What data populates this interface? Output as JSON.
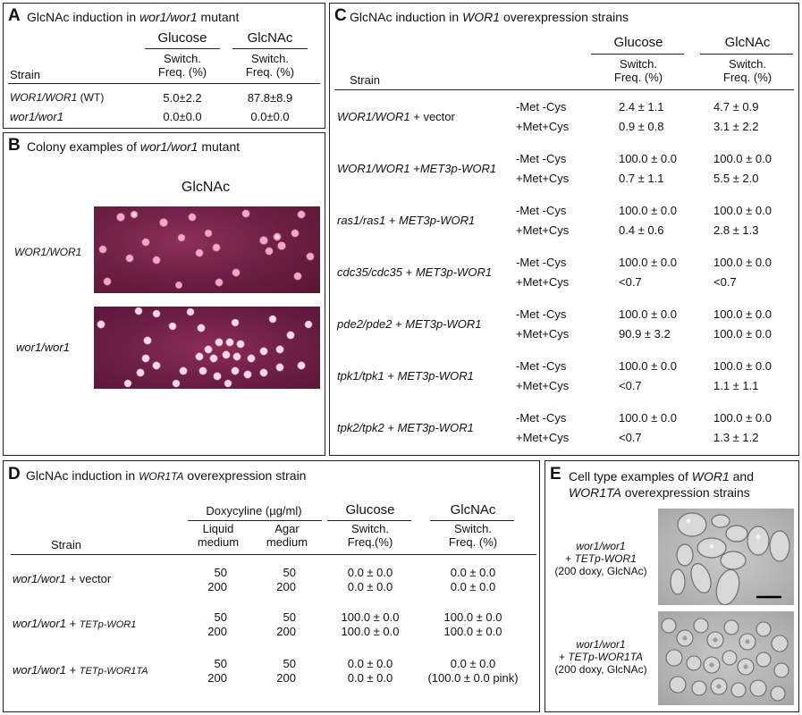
{
  "panelA": {
    "letter": "A",
    "title_pre": "GlcNAc induction in ",
    "title_em": "wor1/wor1",
    "title_post": " mutant",
    "col_glucose": "Glucose",
    "col_glcnac": "GlcNAc",
    "switch_freq_line1": "Switch.",
    "switch_freq_line2": "Freq. (%)",
    "strain_header": "Strain",
    "rows": [
      {
        "strain_em": "WOR1/WOR1",
        "strain_post": " (WT)",
        "glucose": "5.0±2.2",
        "glcnac": "87.8±8.9"
      },
      {
        "strain_em": "wor1/wor1",
        "strain_post": "",
        "glucose": "0.0±0.0",
        "glcnac": "0.0±0.0"
      }
    ]
  },
  "panelB": {
    "letter": "B",
    "title_pre": "Colony examples of ",
    "title_em": "wor1/wor1",
    "title_post": " mutant",
    "condition": "GlcNAc",
    "rows": [
      {
        "label": "WOR1/WOR1"
      },
      {
        "label": "wor1/wor1"
      }
    ]
  },
  "panelC": {
    "letter": "C",
    "title_pre": "GlcNAc induction in ",
    "title_em": "WOR1",
    "title_post": " overexpression strains",
    "col_glucose": "Glucose",
    "col_glcnac": "GlcNAc",
    "switch_freq_line1": "Switch.",
    "switch_freq_line2": "Freq. (%)",
    "strain_header": "Strain",
    "rows": [
      {
        "strain_em": "WOR1/WOR1",
        "strain_post": " + vector",
        "cond1": "-Met -Cys",
        "g1": "2.4 ± 1.1",
        "n1": "4.7 ± 0.9",
        "cond2": "+Met+Cys",
        "g2": "0.9 ± 0.8",
        "n2": "3.1 ± 2.2"
      },
      {
        "strain_em": "WOR1/WOR1",
        "strain_post": " +",
        "strain_em2": "MET3p-WOR1",
        "cond1": "-Met -Cys",
        "g1": "100.0 ± 0.0",
        "n1": "100.0 ± 0.0",
        "cond2": "+Met+Cys",
        "g2": "0.7 ± 1.1",
        "n2": "5.5 ± 2.0"
      },
      {
        "strain_em": "ras1/ras1",
        "strain_post": " + ",
        "strain_em2": "MET3p-WOR1",
        "cond1": "-Met -Cys",
        "g1": "100.0 ± 0.0",
        "n1": "100.0 ± 0.0",
        "cond2": "+Met+Cys",
        "g2": "0.4 ± 0.6",
        "n2": "2.8 ± 1.3"
      },
      {
        "strain_em": "cdc35/cdc35",
        "strain_post": " + ",
        "strain_em2": "MET3p-WOR1",
        "cond1": "-Met -Cys",
        "g1": "100.0 ± 0.0",
        "n1": "100.0 ± 0.0",
        "cond2": "+Met+Cys",
        "g2": "<0.7",
        "n2": "<0.7"
      },
      {
        "strain_em": "pde2/pde2",
        "strain_post": " + ",
        "strain_em2": "MET3p-WOR1",
        "cond1": "-Met -Cys",
        "g1": "100.0 ± 0.0",
        "n1": "100.0 ± 0.0",
        "cond2": "+Met+Cys",
        "g2": "90.9 ± 3.2",
        "n2": "100.0 ± 0.0"
      },
      {
        "strain_em": "tpk1/tpk1",
        "strain_post": " + ",
        "strain_em2": "MET3p-WOR1",
        "cond1": "-Met -Cys",
        "g1": "100.0 ± 0.0",
        "n1": "100.0 ± 0.0",
        "cond2": "+Met+Cys",
        "g2": "<0.7",
        "n2": "1.1 ± 1.1"
      },
      {
        "strain_em": "tpk2/tpk2",
        "strain_post": " + ",
        "strain_em2": "MET3p-WOR1",
        "cond1": "-Met -Cys",
        "g1": "100.0 ± 0.0",
        "n1": "100.0 ± 0.0",
        "cond2": "+Met+Cys",
        "g2": "<0.7",
        "n2": "1.3 ± 1.2"
      }
    ]
  },
  "panelD": {
    "letter": "D",
    "title_pre": "GlcNAc induction in ",
    "title_em": "WOR1TA",
    "title_post": " overexpression strain",
    "doxy_header": "Doxycyline (µg/ml)",
    "liquid_1": "Liquid",
    "liquid_2": "medium",
    "agar_1": "Agar",
    "agar_2": "medium",
    "col_glucose": "Glucose",
    "col_glcnac": "GlcNAc",
    "glu_sf_1": "Switch.",
    "glu_sf_2": "Freq.(%)",
    "glc_sf_1": "Switch.",
    "glc_sf_2": "Freq. (%)",
    "strain_header": "Strain",
    "rows": [
      {
        "strain_em": "wor1/wor1",
        "strain_post": " + vector",
        "strain_em2": "",
        "l1": "50",
        "a1": "50",
        "g1": "0.0 ± 0.0",
        "n1": "0.0 ± 0.0",
        "l2": "200",
        "a2": "200",
        "g2": "0.0 ± 0.0",
        "n2": "0.0 ± 0.0"
      },
      {
        "strain_em": "wor1/wor1",
        "strain_post": " + ",
        "strain_em2": "TETp-WOR1",
        "l1": "50",
        "a1": "50",
        "g1": "100.0 ± 0.0",
        "n1": "100.0 ± 0.0",
        "l2": "200",
        "a2": "200",
        "g2": "100.0 ± 0.0",
        "n2": "100.0 ± 0.0"
      },
      {
        "strain_em": "wor1/wor1",
        "strain_post": " + ",
        "strain_em2": "TETp-WOR1TA",
        "l1": "50",
        "a1": "50",
        "g1": "0.0 ± 0.0",
        "n1": "0.0 ± 0.0",
        "l2": "200",
        "a2": "200",
        "g2": "0.0 ± 0.0",
        "n2": "(100.0 ± 0.0 pink)"
      }
    ]
  },
  "panelE": {
    "letter": "E",
    "title_l1_pre": "Cell type examples of ",
    "title_l1_em": "WOR1",
    "title_l1_post": " and",
    "title_l2_em": "WOR1TA",
    "title_l2_post": " overexpression strains",
    "rows": [
      {
        "l1": "wor1/wor1",
        "l2_pre": "+ ",
        "l2_em": "TETp-WOR1",
        "l3": "(200 doxy, GlcNAc)"
      },
      {
        "l1": "wor1/wor1",
        "l2_pre": "+ ",
        "l2_em": "TETp-WOR1TA",
        "l3": "(200 doxy, GlcNAc)"
      }
    ]
  }
}
